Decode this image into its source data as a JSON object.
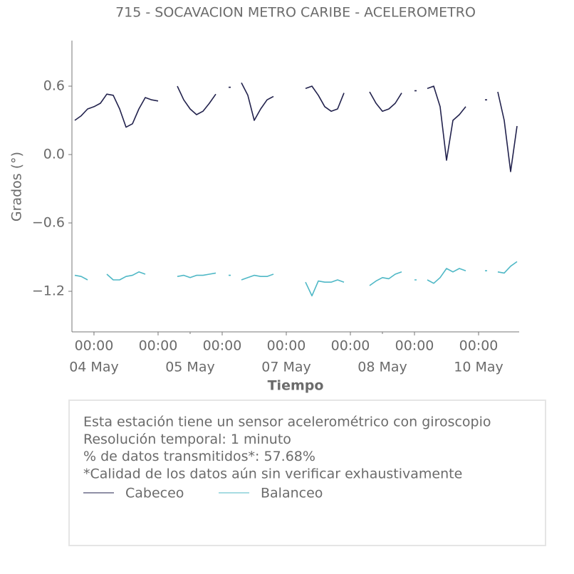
{
  "chart_data": {
    "type": "line",
    "title": "715 - SOCAVACION METRO CARIBE - ACELEROMETRO",
    "ylabel": "Grados (°)",
    "xlabel": "Tiempo",
    "annotations": [
      "Esta estación tiene un sensor acelerométrico con giroscopio",
      "Resolución temporal: 1 minuto",
      "% de datos transmitidos*: 57.68%",
      "*Calidad de los datos aún sin verificar exhaustivamente"
    ],
    "x": [
      -0.3,
      -0.2,
      -0.1,
      0,
      0.1,
      0.2,
      0.3,
      0.4,
      0.5,
      0.6,
      0.7,
      0.8,
      0.9,
      1.0,
      1.1,
      1.2,
      1.3,
      1.4,
      1.5,
      1.6,
      1.7,
      1.8,
      1.9,
      2.0,
      2.1,
      2.2,
      2.3,
      2.4,
      2.5,
      2.6,
      2.7,
      2.8,
      2.9,
      3.0,
      3.1,
      3.2,
      3.3,
      3.4,
      3.5,
      3.6,
      3.7,
      3.8,
      3.9,
      4.0,
      4.1,
      4.2,
      4.3,
      4.4,
      4.5,
      4.6,
      4.7,
      4.8,
      4.9,
      5.0,
      5.1,
      5.2,
      5.3,
      5.4,
      5.5,
      5.6,
      5.7,
      5.8,
      5.9,
      6.0,
      6.1,
      6.2,
      6.3,
      6.4,
      6.5,
      6.6
    ],
    "series": [
      {
        "name": "Cabeceo",
        "color": "#22224d",
        "values": [
          0.3,
          0.34,
          0.4,
          0.42,
          0.45,
          0.53,
          0.52,
          0.4,
          0.24,
          0.27,
          0.4,
          0.5,
          0.48,
          0.47,
          null,
          null,
          0.6,
          0.48,
          0.4,
          0.35,
          0.38,
          0.45,
          0.53,
          null,
          0.59,
          null,
          0.63,
          0.52,
          0.3,
          0.4,
          0.48,
          0.51,
          null,
          null,
          null,
          null,
          0.58,
          0.6,
          0.52,
          0.42,
          0.38,
          0.4,
          0.54,
          null,
          null,
          null,
          0.55,
          0.45,
          0.38,
          0.4,
          0.45,
          0.54,
          null,
          0.56,
          null,
          0.58,
          0.6,
          0.42,
          -0.05,
          0.3,
          0.35,
          0.42,
          null,
          null,
          0.48,
          null,
          0.55,
          0.3,
          -0.15,
          0.25
        ]
      },
      {
        "name": "Balanceo",
        "color": "#4fb8c6",
        "values": [
          -1.06,
          -1.07,
          -1.1,
          null,
          null,
          -1.05,
          -1.1,
          -1.1,
          -1.07,
          -1.06,
          -1.03,
          -1.05,
          null,
          null,
          null,
          null,
          -1.07,
          -1.06,
          -1.08,
          -1.06,
          -1.06,
          -1.05,
          -1.04,
          null,
          -1.06,
          null,
          -1.1,
          -1.08,
          -1.06,
          -1.07,
          -1.07,
          -1.05,
          null,
          null,
          null,
          null,
          -1.12,
          -1.24,
          -1.11,
          -1.12,
          -1.12,
          -1.1,
          -1.12,
          null,
          null,
          null,
          -1.15,
          -1.11,
          -1.08,
          -1.09,
          -1.05,
          -1.03,
          null,
          -1.1,
          null,
          -1.1,
          -1.13,
          -1.08,
          -1.0,
          -1.03,
          -1.0,
          -1.02,
          null,
          null,
          -1.02,
          null,
          -1.03,
          -1.04,
          -0.98,
          -0.94
        ]
      }
    ],
    "xlim": [
      -0.344,
      6.633
    ],
    "xticks": [
      {
        "value": 0,
        "label": "00:00"
      },
      {
        "value": 1,
        "label": "00:00"
      },
      {
        "value": 2,
        "label": "00:00"
      },
      {
        "value": 3,
        "label": "00:00"
      },
      {
        "value": 4,
        "label": "00:00"
      },
      {
        "value": 5,
        "label": "00:00"
      },
      {
        "value": 6,
        "label": "00:00"
      }
    ],
    "xticks_minor": [
      {
        "value": 0,
        "label": "04 May"
      },
      {
        "value": 1.5,
        "label": "05 May"
      },
      {
        "value": 3,
        "label": "07 May"
      },
      {
        "value": 4.5,
        "label": "08 May"
      },
      {
        "value": 6,
        "label": "10 May"
      }
    ],
    "ylim": [
      -1.556,
      1.0
    ],
    "yticks": [
      {
        "value": 0.6,
        "label": "0.6"
      },
      {
        "value": 0,
        "label": "0.0"
      },
      {
        "value": -0.6,
        "label": "−0.6"
      },
      {
        "value": -1.2,
        "label": "−1.2"
      }
    ],
    "grid": false
  }
}
